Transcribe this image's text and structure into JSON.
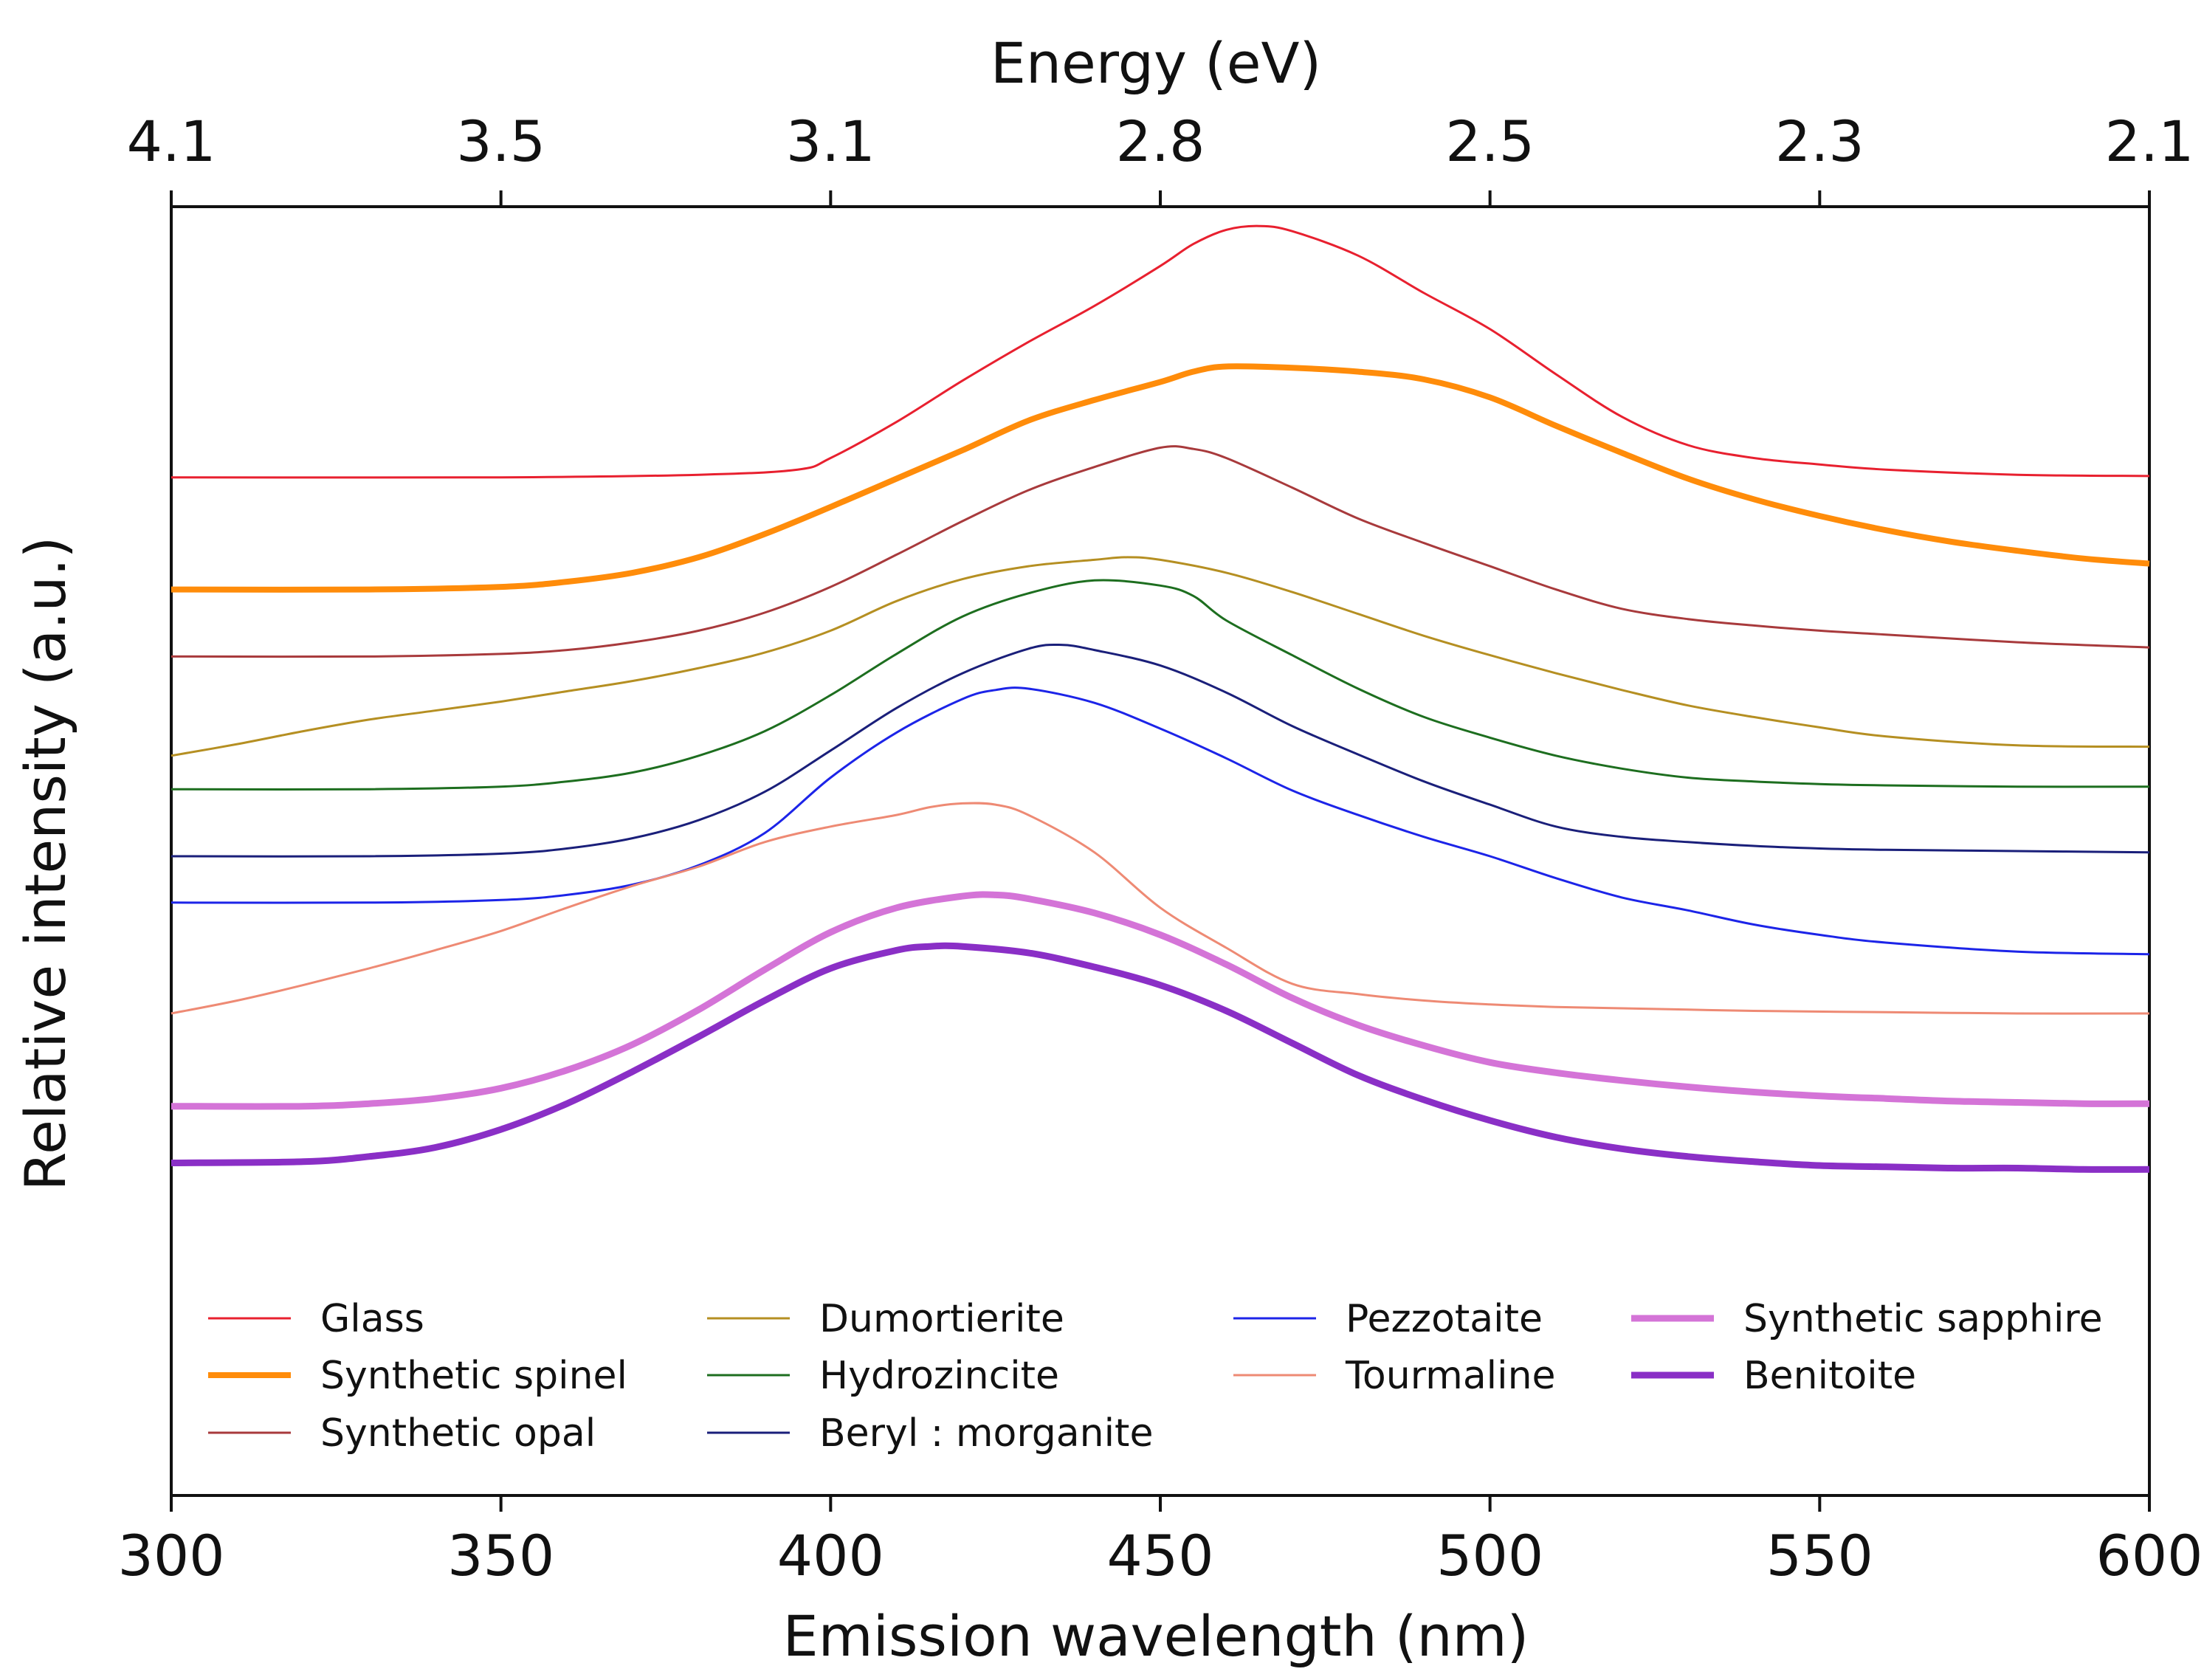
{
  "chart_data": {
    "type": "line",
    "title": "",
    "xlabel": "Emission wavelength (nm)",
    "ylabel": "Relative intensity (a.u.)",
    "top_xlabel": "Energy (eV)",
    "xlim": [
      300,
      600
    ],
    "ylim": [
      0,
      100
    ],
    "y_ticks_shown": false,
    "grid": false,
    "legend_position": "lower-center-inside",
    "x_ticks": [
      300,
      350,
      400,
      450,
      500,
      550,
      600
    ],
    "x_tick_labels": [
      "300",
      "350",
      "400",
      "450",
      "500",
      "550",
      "600"
    ],
    "top_ticks": [
      {
        "wavelength": 300,
        "label": "4.1"
      },
      {
        "wavelength": 350,
        "label": "3.5"
      },
      {
        "wavelength": 400,
        "label": "3.1"
      },
      {
        "wavelength": 450,
        "label": "2.8"
      },
      {
        "wavelength": 500,
        "label": "2.5"
      },
      {
        "wavelength": 550,
        "label": "2.3"
      },
      {
        "wavelength": 600,
        "label": "2.1"
      }
    ],
    "series": [
      {
        "name": "Glass",
        "color": "#e8202f",
        "width": 3,
        "column": 0,
        "row": 0,
        "x": [
          300,
          350,
          380,
          395,
          400,
          410,
          420,
          430,
          440,
          450,
          455,
          460,
          465,
          470,
          480,
          490,
          500,
          510,
          520,
          530,
          540,
          550,
          560,
          580,
          600
        ],
        "y": [
          79,
          79,
          79.2,
          79.6,
          80.5,
          83.3,
          86.5,
          89.5,
          92.3,
          95.4,
          97.1,
          98.2,
          98.5,
          98.1,
          96.2,
          93.3,
          90.5,
          87.0,
          83.7,
          81.5,
          80.5,
          80.0,
          79.6,
          79.2,
          79.1
        ]
      },
      {
        "name": "Synthetic spinel",
        "color": "#ff8c0a",
        "width": 8,
        "column": 0,
        "row": 1,
        "x": [
          300,
          330,
          350,
          360,
          370,
          380,
          390,
          400,
          410,
          420,
          430,
          440,
          450,
          455,
          460,
          470,
          480,
          490,
          500,
          510,
          520,
          530,
          540,
          550,
          560,
          570,
          580,
          590,
          600
        ],
        "y": [
          70.3,
          70.3,
          70.5,
          70.9,
          71.6,
          72.8,
          74.6,
          76.7,
          78.9,
          81.1,
          83.4,
          85.0,
          86.4,
          87.2,
          87.6,
          87.5,
          87.2,
          86.6,
          85.2,
          83.0,
          80.9,
          78.9,
          77.3,
          76.0,
          74.9,
          74.0,
          73.3,
          72.7,
          72.3
        ]
      },
      {
        "name": "Synthetic opal",
        "color": "#a83a3c",
        "width": 3,
        "column": 0,
        "row": 2,
        "x": [
          300,
          330,
          350,
          360,
          370,
          380,
          390,
          400,
          410,
          420,
          430,
          440,
          450,
          455,
          460,
          470,
          480,
          490,
          500,
          510,
          520,
          530,
          540,
          550,
          560,
          580,
          600
        ],
        "y": [
          65.1,
          65.1,
          65.3,
          65.6,
          66.2,
          67.1,
          68.5,
          70.5,
          73.0,
          75.6,
          78.0,
          79.8,
          81.3,
          81.2,
          80.5,
          78.2,
          75.8,
          73.9,
          72.1,
          70.3,
          68.8,
          68.0,
          67.5,
          67.1,
          66.8,
          66.2,
          65.8
        ]
      },
      {
        "name": "Dumortierite",
        "color": "#b58f22",
        "width": 3,
        "column": 1,
        "row": 0,
        "x": [
          300,
          310,
          320,
          330,
          340,
          350,
          360,
          370,
          380,
          390,
          400,
          410,
          420,
          430,
          440,
          445,
          450,
          460,
          470,
          480,
          490,
          500,
          510,
          520,
          530,
          540,
          550,
          560,
          580,
          600
        ],
        "y": [
          57.4,
          58.3,
          59.3,
          60.2,
          60.9,
          61.6,
          62.4,
          63.2,
          64.2,
          65.4,
          67.1,
          69.4,
          71.1,
          72.1,
          72.6,
          72.8,
          72.6,
          71.6,
          70.1,
          68.4,
          66.7,
          65.2,
          63.8,
          62.5,
          61.3,
          60.4,
          59.6,
          58.9,
          58.2,
          58.1
        ]
      },
      {
        "name": "Hydrozincite",
        "color": "#1d6e1f",
        "width": 3,
        "column": 1,
        "row": 1,
        "x": [
          300,
          330,
          350,
          360,
          370,
          380,
          390,
          400,
          410,
          420,
          430,
          440,
          450,
          455,
          460,
          470,
          480,
          490,
          500,
          510,
          520,
          530,
          540,
          550,
          560,
          580,
          600
        ],
        "y": [
          54.8,
          54.8,
          55.0,
          55.4,
          56.1,
          57.4,
          59.3,
          62.1,
          65.3,
          68.2,
          70.0,
          71.0,
          70.6,
          69.8,
          67.9,
          65.2,
          62.6,
          60.4,
          58.8,
          57.4,
          56.4,
          55.7,
          55.4,
          55.2,
          55.1,
          55.0,
          55.0
        ]
      },
      {
        "name": "Beryl : morganite",
        "color": "#1a1f7a",
        "width": 3,
        "column": 1,
        "row": 2,
        "x": [
          300,
          330,
          350,
          360,
          370,
          380,
          390,
          400,
          410,
          420,
          430,
          435,
          440,
          450,
          460,
          470,
          480,
          490,
          500,
          510,
          520,
          530,
          540,
          550,
          560,
          580,
          600
        ],
        "y": [
          49.6,
          49.6,
          49.8,
          50.2,
          51.0,
          52.4,
          54.6,
          57.8,
          61.1,
          63.8,
          65.7,
          66.0,
          65.6,
          64.4,
          62.3,
          59.7,
          57.5,
          55.4,
          53.6,
          51.9,
          51.1,
          50.7,
          50.4,
          50.2,
          50.1,
          50.0,
          49.9
        ]
      },
      {
        "name": "Pezzotaite",
        "color": "#1c24e8",
        "width": 3,
        "column": 2,
        "row": 0,
        "x": [
          300,
          330,
          350,
          360,
          370,
          380,
          390,
          400,
          410,
          420,
          425,
          430,
          440,
          450,
          460,
          470,
          480,
          490,
          500,
          510,
          520,
          530,
          540,
          550,
          560,
          580,
          600
        ],
        "y": [
          46.0,
          46.0,
          46.2,
          46.6,
          47.4,
          48.9,
          51.4,
          55.7,
          59.2,
          61.8,
          62.5,
          62.6,
          61.5,
          59.5,
          57.2,
          54.7,
          52.8,
          51.1,
          49.6,
          47.9,
          46.4,
          45.4,
          44.3,
          43.5,
          42.9,
          42.2,
          42.0
        ]
      },
      {
        "name": "Tourmaline",
        "color": "#ee8a74",
        "width": 3,
        "column": 2,
        "row": 1,
        "x": [
          300,
          310,
          320,
          330,
          340,
          350,
          360,
          370,
          380,
          390,
          400,
          410,
          415,
          420,
          425,
          430,
          440,
          450,
          460,
          470,
          480,
          490,
          500,
          510,
          520,
          530,
          540,
          560,
          580,
          600
        ],
        "y": [
          37.4,
          38.4,
          39.6,
          40.9,
          42.3,
          43.8,
          45.6,
          47.3,
          48.8,
          50.7,
          51.9,
          52.8,
          53.4,
          53.7,
          53.6,
          52.8,
          49.9,
          45.6,
          42.5,
          39.7,
          38.9,
          38.4,
          38.1,
          37.9,
          37.8,
          37.7,
          37.6,
          37.5,
          37.4,
          37.4
        ]
      },
      {
        "name": "Synthetic sapphire",
        "color": "#d474d7",
        "width": 9,
        "column": 3,
        "row": 0,
        "x": [
          300,
          320,
          330,
          340,
          350,
          360,
          370,
          380,
          390,
          400,
          410,
          420,
          425,
          430,
          440,
          450,
          460,
          470,
          480,
          490,
          500,
          510,
          520,
          530,
          540,
          550,
          560,
          570,
          580,
          590,
          600
        ],
        "y": [
          30.2,
          30.2,
          30.4,
          30.8,
          31.6,
          33.0,
          35.0,
          37.7,
          40.8,
          43.7,
          45.6,
          46.5,
          46.6,
          46.3,
          45.2,
          43.5,
          41.2,
          38.6,
          36.5,
          34.9,
          33.6,
          32.8,
          32.2,
          31.7,
          31.3,
          31.0,
          30.8,
          30.6,
          30.5,
          30.4,
          30.4
        ]
      },
      {
        "name": "Benitoite",
        "color": "#8a2fc6",
        "width": 9,
        "column": 3,
        "row": 1,
        "x": [
          300,
          320,
          330,
          340,
          350,
          360,
          370,
          380,
          390,
          400,
          410,
          415,
          420,
          430,
          440,
          450,
          460,
          470,
          480,
          490,
          500,
          510,
          520,
          530,
          540,
          550,
          560,
          570,
          580,
          590,
          600
        ],
        "y": [
          25.8,
          25.9,
          26.3,
          27.0,
          28.4,
          30.4,
          32.9,
          35.6,
          38.4,
          40.9,
          42.3,
          42.6,
          42.6,
          42.1,
          41.0,
          39.6,
          37.6,
          35.1,
          32.6,
          30.7,
          29.1,
          27.8,
          26.9,
          26.3,
          25.9,
          25.6,
          25.5,
          25.4,
          25.4,
          25.3,
          25.3
        ]
      }
    ]
  }
}
